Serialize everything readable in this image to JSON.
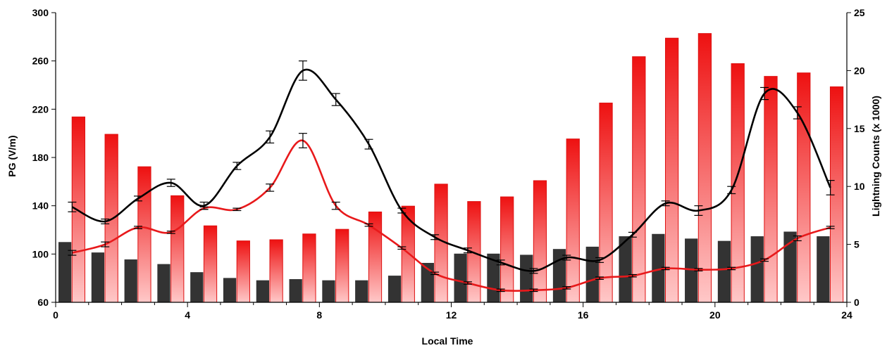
{
  "chart_data": {
    "type": "bar",
    "title": "",
    "xlabel": "Local Time",
    "ylabel": "PG (V/m)",
    "y2label": "Lightning Counts (x 1000)",
    "xlim": [
      0,
      24
    ],
    "ylim": [
      60,
      300
    ],
    "y2lim": [
      0,
      25
    ],
    "xticks": [
      0,
      4,
      8,
      12,
      16,
      20,
      24
    ],
    "yticks": [
      60,
      100,
      140,
      180,
      220,
      260,
      300
    ],
    "y2ticks": [
      0,
      5,
      10,
      15,
      20,
      25
    ],
    "grid": false,
    "legend": "none",
    "colors": {
      "black_bars": "#333333",
      "red_bars_top": "#ee1111",
      "red_bars_bottom": "#ffc8c8",
      "black_line": "#000000",
      "red_line": "#e8191b"
    },
    "series": [
      {
        "kind": "bar",
        "axis": "right",
        "color": "black",
        "x": [
          0.5,
          1.5,
          2.5,
          3.5,
          4.5,
          5.5,
          6.5,
          7.5,
          8.5,
          9.5,
          10.5,
          11.5,
          12.5,
          13.5,
          14.5,
          15.5,
          16.5,
          17.5,
          18.5,
          19.5,
          20.5,
          21.5,
          22.5,
          23.5
        ],
        "values": [
          5.2,
          4.3,
          3.7,
          3.3,
          2.6,
          2.1,
          1.9,
          2.0,
          1.9,
          1.9,
          2.3,
          3.4,
          4.2,
          4.2,
          4.1,
          4.6,
          4.8,
          5.7,
          5.9,
          5.5,
          5.3,
          5.7,
          6.1,
          5.7
        ]
      },
      {
        "kind": "bar",
        "axis": "right",
        "color": "red",
        "x": [
          0.5,
          1.5,
          2.5,
          3.5,
          4.5,
          5.5,
          6.5,
          7.5,
          8.5,
          9.5,
          10.5,
          11.5,
          12.5,
          13.5,
          14.5,
          15.5,
          16.5,
          17.5,
          18.5,
          19.5,
          20.5,
          21.5,
          22.5,
          23.5
        ],
        "values": [
          16.0,
          14.5,
          11.7,
          9.2,
          6.6,
          5.3,
          5.4,
          5.9,
          6.3,
          7.8,
          8.3,
          10.2,
          8.7,
          9.1,
          10.5,
          14.1,
          17.2,
          21.2,
          22.8,
          23.2,
          20.6,
          19.5,
          19.8,
          18.6
        ]
      },
      {
        "kind": "line",
        "axis": "left",
        "color": "black",
        "x": [
          0.5,
          1.5,
          2.5,
          3.5,
          4.5,
          5.5,
          6.5,
          7.5,
          8.5,
          9.5,
          10.5,
          11.5,
          12.5,
          13.5,
          14.5,
          15.5,
          16.5,
          17.5,
          18.5,
          19.5,
          20.5,
          21.5,
          22.5,
          23.5
        ],
        "values": [
          139,
          127,
          146,
          159,
          140,
          173,
          197,
          252,
          228,
          191,
          136,
          114,
          103,
          93,
          86,
          97,
          95,
          116,
          142,
          136,
          153,
          233,
          217,
          155
        ],
        "errors": [
          4,
          2,
          2,
          3,
          3,
          3,
          5,
          8,
          5,
          4,
          2,
          2,
          2,
          2,
          2,
          2,
          2,
          2,
          2,
          4,
          3,
          5,
          5,
          6
        ]
      },
      {
        "kind": "line",
        "axis": "left",
        "color": "red",
        "x": [
          0.5,
          1.5,
          2.5,
          3.5,
          4.5,
          5.5,
          6.5,
          7.5,
          8.5,
          9.5,
          10.5,
          11.5,
          12.5,
          13.5,
          14.5,
          15.5,
          16.5,
          17.5,
          18.5,
          19.5,
          20.5,
          21.5,
          22.5,
          23.5
        ],
        "values": [
          101,
          108,
          122,
          118,
          138,
          137,
          155,
          194,
          140,
          124,
          105,
          84,
          76,
          70,
          70,
          72,
          80,
          82,
          88,
          87,
          88,
          95,
          113,
          122
        ],
        "errors": [
          2,
          2,
          1,
          1,
          1,
          1,
          3,
          6,
          3,
          1,
          1,
          1,
          1,
          1,
          1,
          1,
          1,
          1,
          1,
          1,
          1,
          1,
          2,
          1
        ]
      }
    ]
  }
}
